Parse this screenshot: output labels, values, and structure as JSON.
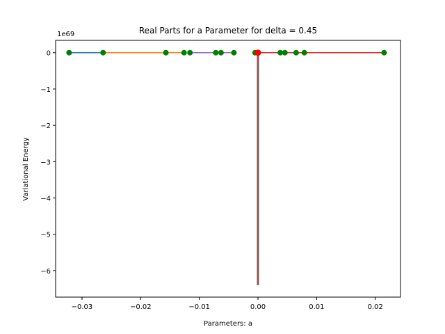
{
  "chart_data": {
    "type": "line",
    "title": "Real Parts for a Parameter for delta = 0.45",
    "xlabel": "Parameters: a",
    "ylabel": "Variational Energy",
    "y_offset_label": "1e69",
    "xlim": [
      -0.0345,
      0.0243
    ],
    "ylim": [
      -6.73,
      0.34
    ],
    "x_ticks": [
      -0.03,
      -0.02,
      -0.01,
      0.0,
      0.01,
      0.02
    ],
    "x_tick_labels": [
      "−0.03",
      "−0.02",
      "−0.01",
      "0.00",
      "0.01",
      "0.02"
    ],
    "y_ticks": [
      0,
      -1,
      -2,
      -3,
      -4,
      -5,
      -6
    ],
    "y_tick_labels": [
      "0",
      "−1",
      "−2",
      "−3",
      "−4",
      "−5",
      "−6"
    ],
    "grid": false,
    "legend": "none",
    "series": [
      {
        "color": "#1f77b4",
        "x": [
          -0.0322,
          -0.0264
        ],
        "y": [
          0,
          0
        ]
      },
      {
        "color": "#ff7f0e",
        "x": [
          -0.0264,
          -0.0157,
          -0.0126
        ],
        "y": [
          0,
          0,
          0
        ]
      },
      {
        "color": "#9467bd",
        "x": [
          -0.0116,
          -0.0072,
          -0.0063,
          -0.0041
        ],
        "y": [
          0,
          0,
          0,
          0
        ]
      },
      {
        "color": "#d62728",
        "x": [
          0.0,
          0.0038,
          0.0046,
          0.0065,
          0.0079,
          0.0215
        ],
        "y": [
          0,
          0,
          0,
          0,
          0,
          0
        ]
      },
      {
        "color": "#8c564b",
        "x": [
          0.0,
          0.0
        ],
        "y": [
          0,
          -6.4
        ]
      }
    ],
    "markers": {
      "color": "#008000",
      "x": [
        -0.0322,
        -0.0264,
        -0.0157,
        -0.0126,
        -0.0116,
        -0.0072,
        -0.0063,
        -0.0041,
        -0.0005,
        0.0038,
        0.0046,
        0.0065,
        0.0079,
        0.0215
      ],
      "y": [
        0,
        0,
        0,
        0,
        0,
        0,
        0,
        0,
        0,
        0,
        0,
        0,
        0,
        0
      ]
    },
    "highlight": {
      "color": "#ff0000",
      "x": 0.0,
      "y": 0
    }
  }
}
